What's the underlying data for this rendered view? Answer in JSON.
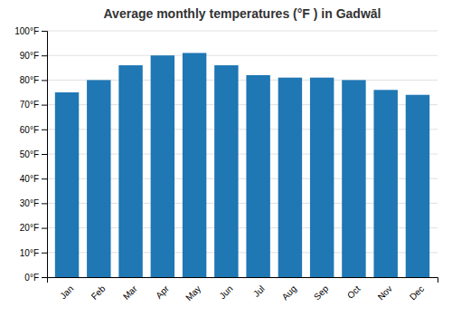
{
  "chart_data": {
    "type": "bar",
    "title": "Average monthly temperatures (°F ) in Gadwāl",
    "categories": [
      "Jan",
      "Feb",
      "Mar",
      "Apr",
      "May",
      "Jun",
      "Jul",
      "Aug",
      "Sep",
      "Oct",
      "Nov",
      "Dec"
    ],
    "values": [
      75,
      80,
      86,
      90,
      91,
      86,
      82,
      81,
      81,
      80,
      76,
      74
    ],
    "ylim": [
      0,
      100
    ],
    "yticks": [
      {
        "value": 0,
        "label": "0°F"
      },
      {
        "value": 10,
        "label": "10°F"
      },
      {
        "value": 20,
        "label": "20°F"
      },
      {
        "value": 30,
        "label": "30°F"
      },
      {
        "value": 40,
        "label": "40°F"
      },
      {
        "value": 50,
        "label": "50°F"
      },
      {
        "value": 60,
        "label": "60°F"
      },
      {
        "value": 70,
        "label": "70°F"
      },
      {
        "value": 80,
        "label": "80°F"
      },
      {
        "value": 90,
        "label": "90°F"
      },
      {
        "value": 100,
        "label": "100°F"
      }
    ],
    "grid": true
  }
}
